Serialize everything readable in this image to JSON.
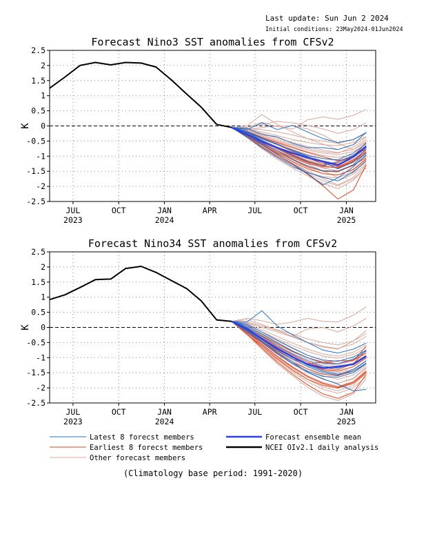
{
  "header": {
    "last_update": "Last update: Sun Jun 2 2024",
    "initial_conditions": "Initial conditions: 23May2024-01Jun2024"
  },
  "legend": {
    "latest": "Latest 8 forecst members",
    "earliest": "Earliest 8 forecst members",
    "other": "Other forecast members",
    "mean": "Forecast ensemble mean",
    "obs": "NCEI OIv2.1 daily analysis"
  },
  "footer": "(Climatology base period: 1991-2020)",
  "colors": {
    "latest": "#1f6fcf",
    "earliest": "#e8451c",
    "other": "#dba79a",
    "mean": "#2a3fe6",
    "obs": "#000000",
    "grid": "#888888"
  },
  "chart_data": [
    {
      "type": "line",
      "title": "Forecast Nino3 SST anomalies from CFSv2",
      "ylabel": "K",
      "ylim": [
        -2.5,
        2.5
      ],
      "yticks": [
        "2.5",
        "2",
        "1.5",
        "1",
        "0.5",
        "0",
        "-0.5",
        "-1",
        "-1.5",
        "-2",
        "-2.5"
      ],
      "xlim": [
        "2023-05-15",
        "2025-03-01"
      ],
      "xticks": [
        {
          "label": "JUL",
          "year": "2023",
          "date": "2023-07-01"
        },
        {
          "label": "OCT",
          "year": "",
          "date": "2023-10-01"
        },
        {
          "label": "JAN",
          "year": "2024",
          "date": "2024-01-01"
        },
        {
          "label": "APR",
          "year": "",
          "date": "2024-04-01"
        },
        {
          "label": "JUL",
          "year": "",
          "date": "2024-07-01"
        },
        {
          "label": "OCT",
          "year": "",
          "date": "2024-10-01"
        },
        {
          "label": "JAN",
          "year": "2025",
          "date": "2025-01-01"
        }
      ],
      "grid": true,
      "forecast_dates": [
        "2024-05-15",
        "2024-06-15",
        "2024-07-15",
        "2024-08-15",
        "2024-09-15",
        "2024-10-15",
        "2024-11-15",
        "2024-12-15",
        "2025-01-15",
        "2025-02-10"
      ],
      "observed": {
        "dates": [
          "2023-05-15",
          "2023-06-15",
          "2023-07-15",
          "2023-08-15",
          "2023-09-15",
          "2023-10-15",
          "2023-11-15",
          "2023-12-15",
          "2024-01-15",
          "2024-02-15",
          "2024-03-15",
          "2024-04-15",
          "2024-05-15"
        ],
        "values": [
          1.25,
          1.62,
          2.0,
          2.1,
          2.02,
          2.1,
          2.08,
          1.95,
          1.52,
          1.05,
          0.62,
          0.05,
          -0.05
        ]
      },
      "mean": [
        -0.05,
        -0.28,
        -0.52,
        -0.72,
        -0.9,
        -1.05,
        -1.18,
        -1.3,
        -1.02,
        -0.68
      ],
      "latest": [
        [
          -0.05,
          -0.08,
          -0.28,
          -0.36,
          -0.58,
          -0.72,
          -0.72,
          -0.78,
          -0.62,
          -0.2
        ],
        [
          -0.05,
          -0.18,
          -0.4,
          -0.6,
          -0.82,
          -1.02,
          -1.2,
          -1.42,
          -1.2,
          -0.75
        ],
        [
          -0.05,
          -0.32,
          -0.62,
          -0.95,
          -1.25,
          -1.58,
          -1.95,
          -1.72,
          -1.35,
          -0.95
        ],
        [
          -0.05,
          -0.12,
          0.1,
          -0.12,
          0.02,
          -0.2,
          -0.42,
          -0.55,
          -0.45,
          -0.22
        ],
        [
          -0.05,
          -0.28,
          -0.58,
          -0.82,
          -1.1,
          -1.32,
          -1.48,
          -1.5,
          -1.28,
          -0.88
        ],
        [
          -0.05,
          -0.22,
          -0.48,
          -0.72,
          -0.98,
          -1.18,
          -1.32,
          -1.18,
          -0.98,
          -0.65
        ],
        [
          -0.05,
          -0.38,
          -0.72,
          -1.05,
          -1.35,
          -1.55,
          -1.7,
          -1.82,
          -1.52,
          -1.15
        ],
        [
          -0.05,
          -0.2,
          -0.42,
          -0.62,
          -0.8,
          -0.98,
          -1.08,
          -1.12,
          -0.9,
          -0.58
        ]
      ],
      "earliest": [
        [
          -0.05,
          -0.35,
          -0.68,
          -1.0,
          -1.28,
          -1.6,
          -1.98,
          -2.42,
          -2.12,
          -1.28
        ],
        [
          -0.05,
          -0.28,
          -0.55,
          -0.82,
          -1.05,
          -1.25,
          -1.35,
          -1.38,
          -1.15,
          -0.85
        ],
        [
          -0.05,
          -0.18,
          -0.38,
          -0.55,
          -0.72,
          -0.88,
          -1.02,
          -1.15,
          -1.02,
          -0.75
        ],
        [
          -0.05,
          -0.25,
          -0.5,
          -0.75,
          -1.0,
          -1.2,
          -1.32,
          -1.4,
          -1.18,
          -0.9
        ],
        [
          -0.05,
          -0.32,
          -0.6,
          -0.88,
          -1.12,
          -1.35,
          -1.5,
          -1.52,
          -1.3,
          -1.05
        ],
        [
          -0.05,
          -0.22,
          -0.42,
          -0.62,
          -0.85,
          -1.05,
          -1.25,
          -1.35,
          -1.12,
          -0.8
        ],
        [
          -0.05,
          -0.28,
          -0.5,
          -0.72,
          -0.95,
          -1.15,
          -1.3,
          -1.22,
          -1.0,
          -0.55
        ],
        [
          -0.05,
          -0.35,
          -0.62,
          -0.92,
          -1.18,
          -1.42,
          -1.58,
          -1.62,
          -1.45,
          -1.1
        ]
      ],
      "others": [
        [
          -0.05,
          0.0,
          0.38,
          0.05,
          -0.2,
          -0.42,
          -0.6,
          -0.78,
          -0.62,
          -0.38
        ],
        [
          -0.05,
          -0.05,
          0.12,
          -0.02,
          -0.1,
          0.2,
          0.3,
          0.22,
          0.35,
          0.55
        ],
        [
          -0.05,
          -0.12,
          -0.05,
          0.0,
          0.0,
          -0.1,
          -0.3,
          -0.58,
          -0.78,
          -0.5
        ],
        [
          -0.05,
          -0.38,
          -0.75,
          -1.1,
          -1.4,
          -1.65,
          -1.9,
          -2.08,
          -1.8,
          -1.38
        ],
        [
          -0.05,
          -0.3,
          -0.6,
          -0.9,
          -1.2,
          -1.5,
          -1.75,
          -1.95,
          -1.7,
          -1.3
        ],
        [
          -0.05,
          -0.25,
          -0.5,
          -0.75,
          -1.0,
          -1.25,
          -1.5,
          -1.7,
          -1.55,
          -1.15
        ],
        [
          -0.05,
          -0.2,
          -0.4,
          -0.6,
          -0.82,
          -1.0,
          -1.15,
          -1.25,
          -1.1,
          -0.88
        ],
        [
          -0.05,
          -0.15,
          -0.32,
          -0.5,
          -0.65,
          -0.8,
          -0.9,
          -0.95,
          -0.85,
          -0.62
        ],
        [
          -0.05,
          -0.1,
          -0.2,
          -0.32,
          -0.45,
          -0.55,
          -0.62,
          -0.65,
          -0.55,
          -0.35
        ],
        [
          -0.05,
          -0.22,
          -0.45,
          -0.7,
          -0.95,
          -1.18,
          -1.38,
          -1.5,
          -1.32,
          -1.0
        ],
        [
          -0.05,
          -0.35,
          -0.7,
          -1.02,
          -1.3,
          -1.52,
          -1.68,
          -1.72,
          -1.5,
          -1.2
        ],
        [
          -0.05,
          -0.28,
          -0.55,
          -0.85,
          -1.12,
          -1.38,
          -1.58,
          -1.62,
          -1.42,
          -1.08
        ],
        [
          -0.05,
          -0.18,
          -0.35,
          -0.52,
          -0.7,
          -0.85,
          -0.98,
          -1.05,
          -0.95,
          -0.72
        ],
        [
          -0.05,
          -0.05,
          0.05,
          0.15,
          0.1,
          0.02,
          -0.1,
          -0.25,
          -0.12,
          0.1
        ],
        [
          -0.05,
          -0.3,
          -0.62,
          -0.95,
          -1.25,
          -1.5,
          -1.7,
          -1.82,
          -1.6,
          -1.25
        ],
        [
          -0.05,
          -0.12,
          -0.25,
          -0.4,
          -0.55,
          -0.68,
          -0.8,
          -0.88,
          -0.78,
          -0.55
        ],
        [
          -0.05,
          -0.25,
          -0.48,
          -0.7,
          -0.9,
          -1.1,
          -1.25,
          -1.35,
          -1.2,
          -0.92
        ],
        [
          -0.05,
          -0.2,
          -0.38,
          -0.58,
          -0.78,
          -0.95,
          -1.08,
          -1.15,
          -1.05,
          -0.8
        ],
        [
          -0.05,
          -0.32,
          -0.66,
          -1.0,
          -1.3,
          -1.58,
          -1.82,
          -1.98,
          -1.75,
          -1.4
        ],
        [
          -0.05,
          -0.08,
          -0.12,
          -0.2,
          -0.3,
          -0.42,
          -0.5,
          -0.58,
          -0.45,
          -0.25
        ],
        [
          -0.05,
          -0.28,
          -0.52,
          -0.78,
          -1.02,
          -1.22,
          -1.4,
          -1.48,
          -1.3,
          -0.98
        ],
        [
          -0.05,
          -0.15,
          -0.28,
          -0.45,
          -0.62,
          -0.75,
          -0.85,
          -0.9,
          -0.7,
          -0.45
        ]
      ]
    },
    {
      "type": "line",
      "title": "Forecast Nino34 SST anomalies from CFSv2",
      "ylabel": "K",
      "ylim": [
        -2.5,
        2.5
      ],
      "yticks": [
        "2.5",
        "2",
        "1.5",
        "1",
        "0.5",
        "0",
        "-0.5",
        "-1",
        "-1.5",
        "-2",
        "-2.5"
      ],
      "xlim": [
        "2023-05-15",
        "2025-03-01"
      ],
      "xticks": [
        {
          "label": "JUL",
          "year": "2023",
          "date": "2023-07-01"
        },
        {
          "label": "OCT",
          "year": "",
          "date": "2023-10-01"
        },
        {
          "label": "JAN",
          "year": "2024",
          "date": "2024-01-01"
        },
        {
          "label": "APR",
          "year": "",
          "date": "2024-04-01"
        },
        {
          "label": "JUL",
          "year": "",
          "date": "2024-07-01"
        },
        {
          "label": "OCT",
          "year": "",
          "date": "2024-10-01"
        },
        {
          "label": "JAN",
          "year": "2025",
          "date": "2025-01-01"
        }
      ],
      "grid": true,
      "forecast_dates": [
        "2024-05-15",
        "2024-06-15",
        "2024-07-15",
        "2024-08-15",
        "2024-09-15",
        "2024-10-15",
        "2024-11-15",
        "2024-12-15",
        "2025-01-15",
        "2025-02-10"
      ],
      "observed": {
        "dates": [
          "2023-05-15",
          "2023-06-15",
          "2023-07-15",
          "2023-08-15",
          "2023-09-15",
          "2023-10-15",
          "2023-11-15",
          "2023-12-15",
          "2024-01-15",
          "2024-02-15",
          "2024-03-15",
          "2024-04-15",
          "2024-05-15"
        ],
        "values": [
          0.92,
          1.08,
          1.32,
          1.58,
          1.6,
          1.95,
          2.02,
          1.82,
          1.55,
          1.28,
          0.88,
          0.25,
          0.2
        ]
      },
      "mean": [
        0.2,
        -0.05,
        -0.38,
        -0.7,
        -0.98,
        -1.22,
        -1.35,
        -1.3,
        -1.22,
        -0.95
      ],
      "latest": [
        [
          0.2,
          0.18,
          0.55,
          0.05,
          -0.25,
          -0.5,
          -0.75,
          -0.85,
          -0.72,
          -0.52
        ],
        [
          0.2,
          -0.1,
          -0.45,
          -0.82,
          -1.15,
          -1.48,
          -1.7,
          -1.88,
          -2.1,
          -2.05
        ],
        [
          0.2,
          0.05,
          -0.22,
          -0.5,
          -0.78,
          -1.0,
          -1.18,
          -1.2,
          -1.05,
          -0.78
        ],
        [
          0.2,
          -0.05,
          -0.38,
          -0.7,
          -0.98,
          -1.25,
          -1.45,
          -1.55,
          -1.45,
          -1.18
        ],
        [
          0.2,
          0.0,
          -0.3,
          -0.6,
          -0.88,
          -1.1,
          -1.28,
          -1.35,
          -1.2,
          -0.95
        ],
        [
          0.2,
          -0.15,
          -0.5,
          -0.88,
          -1.2,
          -1.45,
          -1.62,
          -1.65,
          -1.5,
          -1.2
        ],
        [
          0.2,
          0.1,
          -0.15,
          -0.42,
          -0.68,
          -0.92,
          -1.08,
          -1.12,
          -0.98,
          -0.75
        ],
        [
          0.2,
          -0.08,
          -0.4,
          -0.75,
          -1.05,
          -1.3,
          -1.5,
          -1.58,
          -1.4,
          -1.1
        ]
      ],
      "earliest": [
        [
          0.2,
          -0.2,
          -0.68,
          -1.15,
          -1.55,
          -1.9,
          -2.2,
          -2.35,
          -2.15,
          -1.55
        ],
        [
          0.2,
          -0.1,
          -0.45,
          -0.78,
          -1.05,
          -1.2,
          -1.15,
          -1.1,
          -1.1,
          -0.62
        ],
        [
          0.2,
          -0.05,
          -0.35,
          -0.65,
          -0.92,
          -1.15,
          -1.32,
          -1.4,
          -1.2,
          -0.75
        ],
        [
          0.2,
          -0.15,
          -0.55,
          -0.95,
          -1.32,
          -1.62,
          -1.85,
          -1.98,
          -1.8,
          -1.45
        ],
        [
          0.2,
          -0.08,
          -0.4,
          -0.72,
          -1.0,
          -1.22,
          -1.4,
          -1.45,
          -1.3,
          -1.0
        ],
        [
          0.2,
          -0.22,
          -0.62,
          -1.05,
          -1.42,
          -1.72,
          -1.92,
          -2.0,
          -1.85,
          -1.5
        ],
        [
          0.2,
          0.0,
          -0.28,
          -0.55,
          -0.8,
          -1.0,
          -1.15,
          -1.2,
          -1.08,
          -0.85
        ],
        [
          0.2,
          -0.12,
          -0.48,
          -0.85,
          -1.15,
          -1.38,
          -1.55,
          -1.6,
          -1.45,
          -1.2
        ]
      ],
      "others": [
        [
          0.2,
          0.3,
          0.22,
          0.1,
          0.18,
          0.3,
          0.2,
          0.18,
          0.4,
          0.68
        ],
        [
          0.2,
          0.25,
          0.1,
          -0.1,
          -0.3,
          -0.5,
          -0.65,
          -0.72,
          -0.45,
          -0.1
        ],
        [
          0.2,
          0.15,
          0.05,
          -0.1,
          -0.3,
          -0.05,
          0.0,
          -0.15,
          0.05,
          0.3
        ],
        [
          0.2,
          -0.25,
          -0.72,
          -1.2,
          -1.6,
          -1.98,
          -2.28,
          -2.42,
          -2.2,
          -1.7
        ],
        [
          0.2,
          -0.18,
          -0.6,
          -1.02,
          -1.4,
          -1.72,
          -1.98,
          -2.1,
          -1.92,
          -1.5
        ],
        [
          0.2,
          -0.1,
          -0.48,
          -0.85,
          -1.2,
          -1.5,
          -1.72,
          -1.85,
          -1.7,
          -1.35
        ],
        [
          0.2,
          -0.05,
          -0.38,
          -0.7,
          -1.0,
          -1.25,
          -1.45,
          -1.55,
          -1.4,
          -1.12
        ],
        [
          0.2,
          0.0,
          -0.28,
          -0.55,
          -0.82,
          -1.05,
          -1.22,
          -1.3,
          -1.18,
          -0.92
        ],
        [
          0.2,
          0.08,
          -0.15,
          -0.38,
          -0.6,
          -0.8,
          -0.95,
          -1.02,
          -0.9,
          -0.68
        ],
        [
          0.2,
          -0.2,
          -0.6,
          -1.0,
          -1.35,
          -1.65,
          -1.88,
          -2.02,
          -1.85,
          -1.48
        ],
        [
          0.2,
          -0.12,
          -0.5,
          -0.88,
          -1.22,
          -1.5,
          -1.72,
          -1.85,
          -1.68,
          -1.32
        ],
        [
          0.2,
          -0.02,
          -0.32,
          -0.62,
          -0.9,
          -1.15,
          -1.35,
          -1.45,
          -1.3,
          -1.02
        ],
        [
          0.2,
          0.05,
          -0.2,
          -0.45,
          -0.7,
          -0.92,
          -1.1,
          -1.2,
          -1.05,
          -0.8
        ],
        [
          0.2,
          0.12,
          0.0,
          -0.15,
          -0.32,
          -0.5,
          -0.62,
          -0.7,
          -0.55,
          -0.3
        ],
        [
          0.2,
          -0.15,
          -0.55,
          -0.95,
          -1.3,
          -1.6,
          -1.85,
          -1.98,
          -1.82,
          -1.45
        ],
        [
          0.2,
          -0.08,
          -0.42,
          -0.78,
          -1.1,
          -1.38,
          -1.6,
          -1.72,
          -1.58,
          -1.25
        ],
        [
          0.2,
          0.02,
          -0.25,
          -0.52,
          -0.78,
          -1.0,
          -1.18,
          -1.25,
          -1.1,
          -0.85
        ],
        [
          0.2,
          -0.25,
          -0.68,
          -1.1,
          -1.48,
          -1.8,
          -2.05,
          -2.18,
          -2.0,
          -1.62
        ],
        [
          0.2,
          0.1,
          -0.08,
          -0.3,
          -0.52,
          -0.72,
          -0.88,
          -0.95,
          -0.82,
          -0.58
        ],
        [
          0.2,
          -0.05,
          -0.35,
          -0.68,
          -0.98,
          -1.22,
          -1.42,
          -1.5,
          -1.38,
          -1.1
        ],
        [
          0.2,
          0.18,
          0.05,
          -0.08,
          -0.22,
          -0.38,
          -0.5,
          -0.58,
          -0.45,
          -0.2
        ],
        [
          0.2,
          -0.18,
          -0.58,
          -0.98,
          -1.32,
          -1.62,
          -1.82,
          -1.95,
          -1.8,
          -1.42
        ]
      ]
    }
  ]
}
